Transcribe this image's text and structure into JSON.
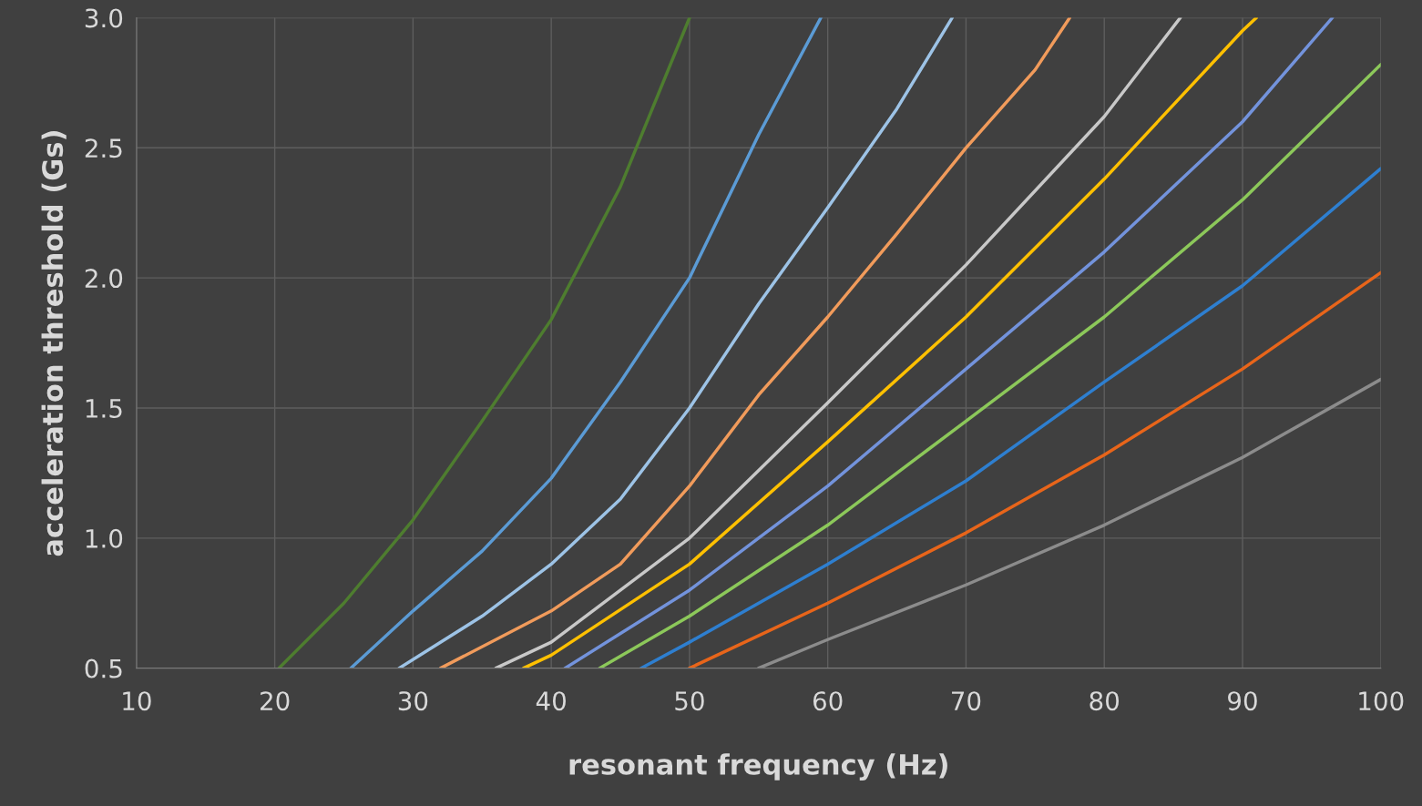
{
  "chart_data": {
    "type": "line",
    "xlabel": "resonant frequency (Hz)",
    "ylabel": "acceleration threshold (Gs)",
    "xlim": [
      10,
      100
    ],
    "ylim": [
      0.5,
      3.0
    ],
    "xticks": [
      10,
      20,
      30,
      40,
      50,
      60,
      70,
      80,
      90,
      100
    ],
    "yticks": [
      {
        "value": 0.5,
        "label": "0.5"
      },
      {
        "value": 1.0,
        "label": "1.0"
      },
      {
        "value": 1.5,
        "label": "1.5"
      },
      {
        "value": 2.0,
        "label": "2.0"
      },
      {
        "value": 2.5,
        "label": "2.5"
      },
      {
        "value": 3.0,
        "label": "3.0"
      }
    ],
    "grid": true,
    "marker": "none",
    "line_style": "solid",
    "series": [
      {
        "color": "#4e7d2f",
        "x": [
          20.3,
          25,
          30,
          35,
          40,
          45,
          50
        ],
        "values": [
          0.5,
          0.75,
          1.07,
          1.45,
          1.84,
          2.35,
          3.0
        ]
      },
      {
        "color": "#5b9bd5",
        "x": [
          25.5,
          30,
          35,
          40,
          45,
          50,
          55,
          59.5
        ],
        "values": [
          0.5,
          0.72,
          0.95,
          1.23,
          1.6,
          2.0,
          2.55,
          3.0
        ]
      },
      {
        "color": "#9dc3e6",
        "x": [
          29,
          35,
          40,
          45,
          50,
          55,
          60,
          65,
          69
        ],
        "values": [
          0.5,
          0.7,
          0.9,
          1.15,
          1.5,
          1.9,
          2.27,
          2.65,
          3.0
        ]
      },
      {
        "color": "#f19b5b",
        "x": [
          32,
          40,
          45,
          50,
          55,
          60,
          65,
          70,
          75,
          77.5
        ],
        "values": [
          0.5,
          0.72,
          0.9,
          1.2,
          1.55,
          1.85,
          2.17,
          2.5,
          2.8,
          3.0
        ]
      },
      {
        "color": "#c8c8c8",
        "x": [
          36,
          40,
          50,
          60,
          70,
          80,
          85.5
        ],
        "values": [
          0.5,
          0.6,
          1.0,
          1.52,
          2.05,
          2.62,
          3.0
        ]
      },
      {
        "color": "#ffc000",
        "x": [
          38,
          40,
          50,
          60,
          70,
          80,
          90,
          91
        ],
        "values": [
          0.5,
          0.55,
          0.9,
          1.37,
          1.85,
          2.38,
          2.95,
          3.0
        ]
      },
      {
        "color": "#7393dc",
        "x": [
          41,
          50,
          60,
          70,
          80,
          90,
          96.5
        ],
        "values": [
          0.5,
          0.8,
          1.2,
          1.65,
          2.1,
          2.6,
          3.0
        ]
      },
      {
        "color": "#8cc85a",
        "x": [
          43.5,
          50,
          60,
          70,
          80,
          90,
          100
        ],
        "values": [
          0.5,
          0.7,
          1.05,
          1.45,
          1.85,
          2.3,
          2.82
        ]
      },
      {
        "color": "#2e7fd0",
        "x": [
          46.5,
          50,
          60,
          70,
          80,
          90,
          100
        ],
        "values": [
          0.5,
          0.6,
          0.9,
          1.22,
          1.6,
          1.97,
          2.42
        ]
      },
      {
        "color": "#e8651a",
        "x": [
          50,
          60,
          70,
          80,
          90,
          100
        ],
        "values": [
          0.5,
          0.75,
          1.02,
          1.32,
          1.65,
          2.02
        ]
      },
      {
        "color": "#8c8c8c",
        "x": [
          55,
          60,
          70,
          80,
          90,
          100
        ],
        "values": [
          0.5,
          0.61,
          0.82,
          1.05,
          1.31,
          1.61
        ]
      }
    ]
  }
}
